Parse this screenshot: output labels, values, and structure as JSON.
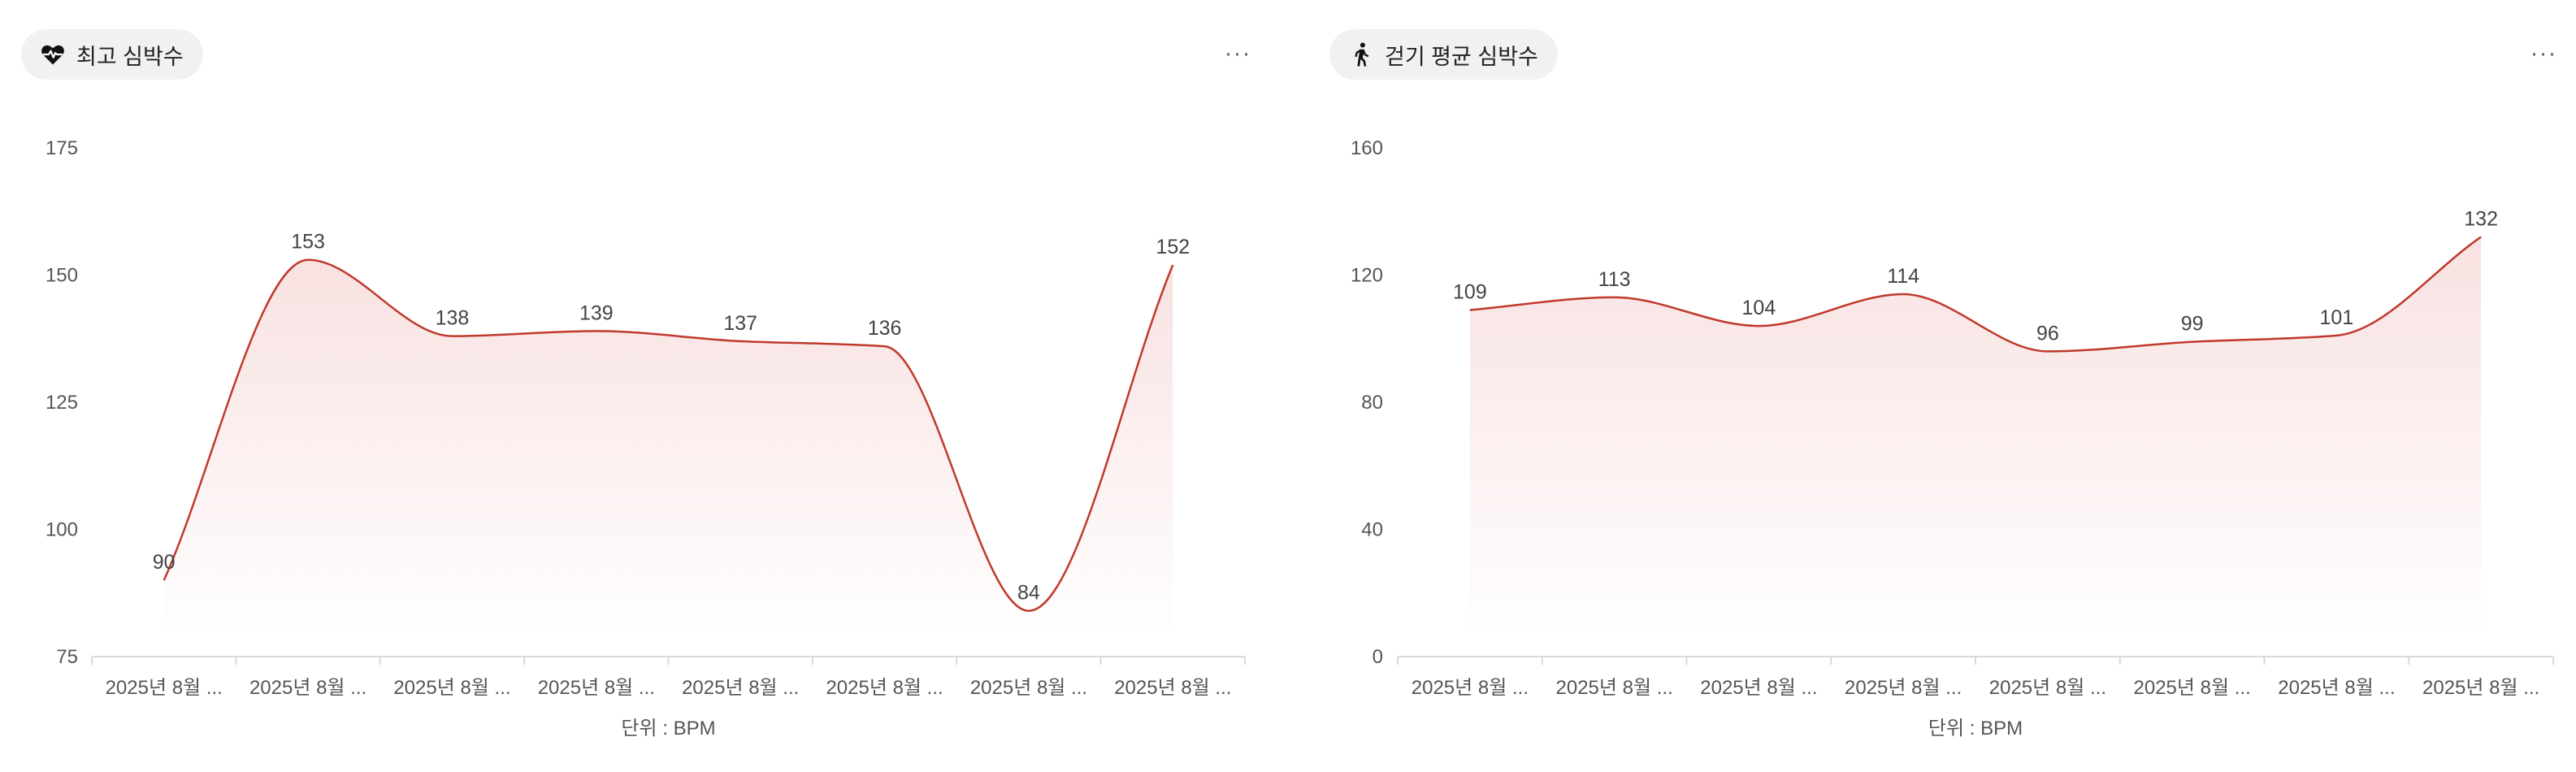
{
  "colors": {
    "line": "#c0392b",
    "fill_top": "#f3c9c9",
    "axis": "#d9d9d9",
    "pill_bg": "#f1f1f1"
  },
  "panels": [
    {
      "title": "최고 심박수",
      "icon": "heart-pulse-icon",
      "more_label": "···",
      "unit_label": "단위 : BPM"
    },
    {
      "title": "걷기 평균 심박수",
      "icon": "walking-person-icon",
      "more_label": "···",
      "unit_label": "단위 : BPM"
    }
  ],
  "chart_data": [
    {
      "type": "area",
      "title": "최고 심박수",
      "categories": [
        "2025년 8월 ...",
        "2025년 8월 ...",
        "2025년 8월 ...",
        "2025년 8월 ...",
        "2025년 8월 ...",
        "2025년 8월 ...",
        "2025년 8월 ...",
        "2025년 8월 ..."
      ],
      "values": [
        90,
        153,
        138,
        139,
        137,
        136,
        84,
        152
      ],
      "ylim": [
        75,
        175
      ],
      "yticks": [
        75,
        100,
        125,
        150,
        175
      ],
      "xlabel": "단위 : BPM",
      "ylabel": "",
      "grid": false
    },
    {
      "type": "area",
      "title": "걷기 평균 심박수",
      "categories": [
        "2025년 8월 ...",
        "2025년 8월 ...",
        "2025년 8월 ...",
        "2025년 8월 ...",
        "2025년 8월 ...",
        "2025년 8월 ...",
        "2025년 8월 ...",
        "2025년 8월 ..."
      ],
      "values": [
        109,
        113,
        104,
        114,
        96,
        99,
        101,
        132
      ],
      "ylim": [
        0,
        160
      ],
      "yticks": [
        0,
        40,
        80,
        120,
        160
      ],
      "xlabel": "단위 : BPM",
      "ylabel": "",
      "grid": false
    }
  ]
}
